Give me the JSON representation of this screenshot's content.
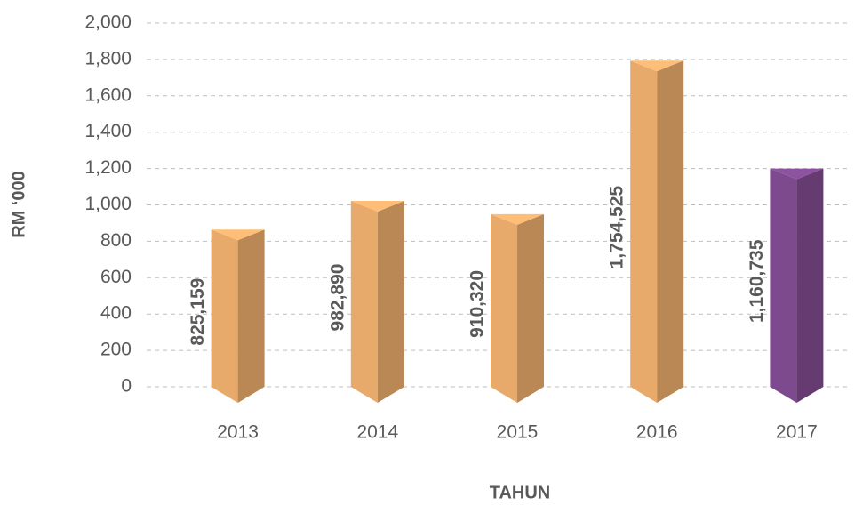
{
  "chart_data": {
    "type": "bar",
    "x_label": "TAHUN",
    "y_label": "RM ‘000",
    "categories": [
      "2013",
      "2014",
      "2015",
      "2016",
      "2017"
    ],
    "values": [
      825.159,
      982.89,
      910.32,
      1754.525,
      1160.735
    ],
    "value_labels": [
      "825,159",
      "982,890",
      "910,320",
      "1,754,525",
      "1,160,735"
    ],
    "colors": [
      "#e8aa6a",
      "#e8aa6a",
      "#e8aa6a",
      "#e8aa6a",
      "#7e4a8e"
    ],
    "ylim": [
      0,
      2000
    ],
    "yticks": [
      0,
      200,
      400,
      600,
      800,
      {
        "value": 1000,
        "label": "1,000"
      },
      {
        "value": 1200,
        "label": "1,200"
      },
      {
        "value": 1400,
        "label": "1,400"
      },
      {
        "value": 1600,
        "label": "1,600"
      },
      {
        "value": 1800,
        "label": "1,800"
      },
      {
        "value": 2000,
        "label": "2,000"
      }
    ],
    "grid": true
  }
}
